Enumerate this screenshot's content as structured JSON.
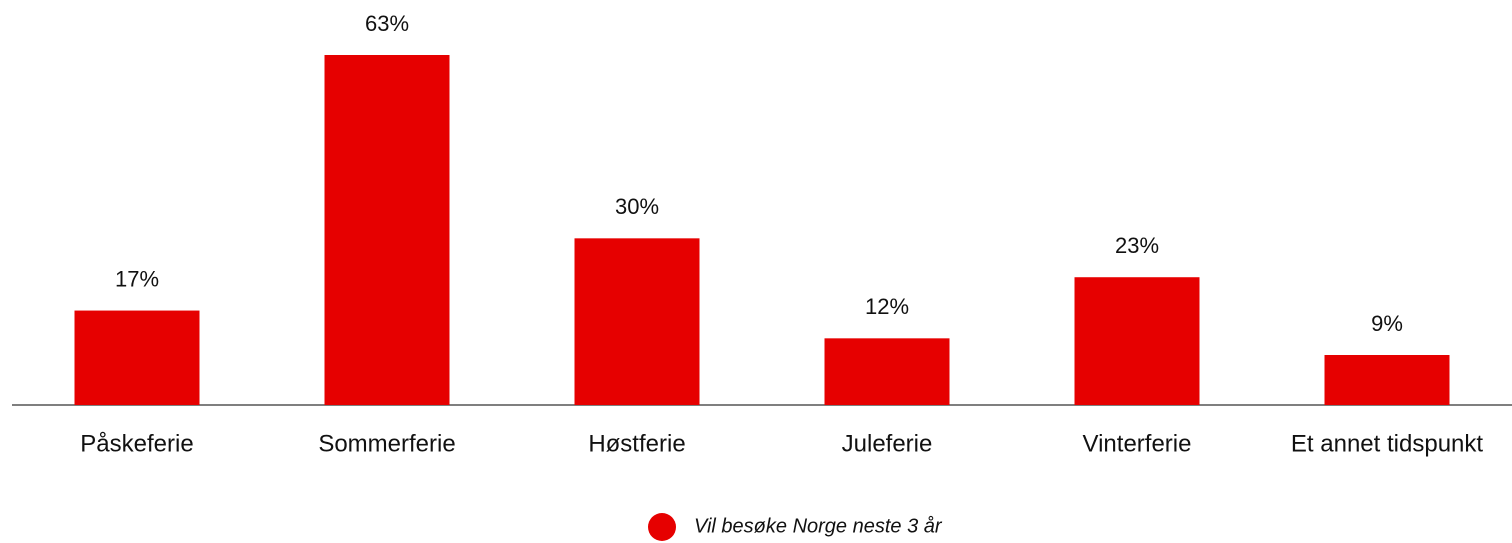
{
  "chart_data": {
    "type": "bar",
    "categories": [
      "Påskeferie",
      "Sommerferie",
      "Høstferie",
      "Juleferie",
      "Vinterferie",
      "Et annet tidspunkt"
    ],
    "series": [
      {
        "name": "Vil besøke Norge neste 3 år",
        "color": "#e60000",
        "values": [
          17,
          63,
          30,
          12,
          23,
          9
        ],
        "value_labels": [
          "17%",
          "63%",
          "30%",
          "12%",
          "23%",
          "9%"
        ]
      }
    ],
    "legend": "bottom"
  }
}
